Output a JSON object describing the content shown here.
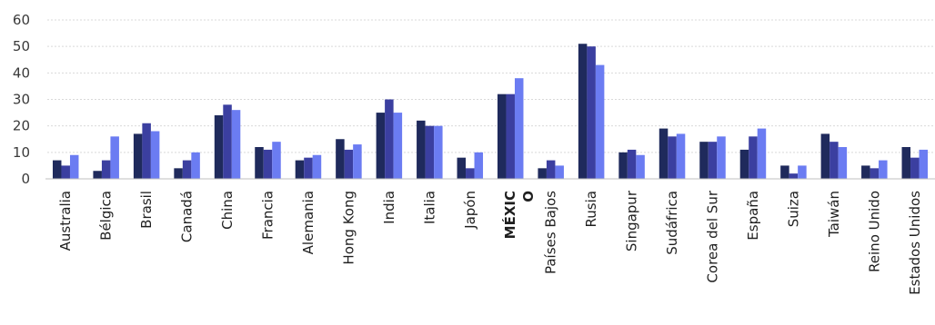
{
  "chart_data": {
    "type": "bar",
    "title": "",
    "xlabel": "",
    "ylabel": "",
    "ylim": [
      0,
      60
    ],
    "y_ticks": [
      "0",
      "10",
      "20",
      "30",
      "40",
      "50",
      "60"
    ],
    "grid": true,
    "legend": "none",
    "categories": [
      "Australia",
      "Bélgica",
      "Brasil",
      "Canadá",
      "China",
      "Francia",
      "Alemania",
      "Hong Kong",
      "India",
      "Italia",
      "Japón",
      "MÉXICO",
      "Países Bajos",
      "Rusia",
      "Singapur",
      "Sudáfrica",
      "Corea del Sur",
      "España",
      "Suiza",
      "Taiwán",
      "Reino Unido",
      "Estados Unidos"
    ],
    "category_label_lines": [
      [
        "Australia"
      ],
      [
        "Bélgica"
      ],
      [
        "Brasil"
      ],
      [
        "Canadá"
      ],
      [
        "China"
      ],
      [
        "Francia"
      ],
      [
        "Alemania"
      ],
      [
        "Hong Kong"
      ],
      [
        "India"
      ],
      [
        "Italia"
      ],
      [
        "Japón"
      ],
      [
        "MÉXIC",
        "O"
      ],
      [
        "Países Bajos"
      ],
      [
        "Rusia"
      ],
      [
        "Singapur"
      ],
      [
        "Sudáfrica"
      ],
      [
        "Corea del Sur"
      ],
      [
        "España"
      ],
      [
        "Suiza"
      ],
      [
        "Taiwán"
      ],
      [
        "Reino Unido"
      ],
      [
        "Estados Unidos"
      ]
    ],
    "highlighted_category": "MÉXICO",
    "series": [
      {
        "color": "#1f2a5c",
        "values": [
          7,
          3,
          17,
          4,
          24,
          12,
          7,
          15,
          25,
          22,
          8,
          32,
          4,
          51,
          10,
          19,
          14,
          11,
          5,
          17,
          5,
          12
        ]
      },
      {
        "color": "#3b3fa0",
        "values": [
          5,
          7,
          21,
          7,
          28,
          11,
          8,
          11,
          30,
          20,
          4,
          32,
          7,
          50,
          11,
          16,
          14,
          16,
          2,
          14,
          4,
          8
        ]
      },
      {
        "color": "#6b7cf2",
        "values": [
          9,
          16,
          18,
          10,
          26,
          14,
          9,
          13,
          25,
          20,
          10,
          38,
          5,
          43,
          9,
          17,
          16,
          19,
          5,
          12,
          7,
          11
        ]
      }
    ]
  }
}
